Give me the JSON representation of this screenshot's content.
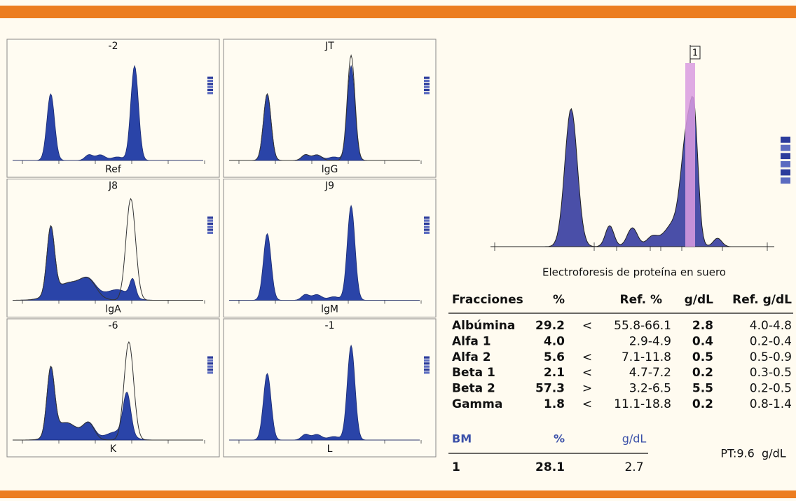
{
  "panels": [
    {
      "top": "-2",
      "bottom": "Ref"
    },
    {
      "top": "JT",
      "bottom": "lgG"
    },
    {
      "top": "J8",
      "bottom": "lgA"
    },
    {
      "top": "J9",
      "bottom": "lgM"
    },
    {
      "top": "-6",
      "bottom": "K"
    },
    {
      "top": "-1",
      "bottom": "L"
    }
  ],
  "main": {
    "marker": "1",
    "caption": "Electroforesis de proteína en suero"
  },
  "table": {
    "header": {
      "name": "Fracciones",
      "pct": "%",
      "ref_pct": "Ref. %",
      "gdl": "g/dL",
      "ref_gdl": "Ref. g/dL"
    },
    "rows": [
      {
        "name": "Albúmina",
        "pct": "29.2",
        "cmp": "<",
        "ref_pct": "55.8-66.1",
        "gdl": "2.8",
        "ref_gdl": "4.0-4.8"
      },
      {
        "name": "Alfa 1",
        "pct": "4.0",
        "ref_pct": "2.9-4.9",
        "gdl": "0.4",
        "ref_gdl": "0.2-0.4"
      },
      {
        "name": "Alfa 2",
        "pct": "5.6",
        "cmp": "<",
        "ref_pct": "7.1-11.8",
        "gdl": "0.5",
        "ref_gdl": "0.5-0.9"
      },
      {
        "name": "Beta 1",
        "pct": "2.1",
        "cmp": "<",
        "ref_pct": "4.7-7.2",
        "gdl": "0.2",
        "ref_gdl": "0.3-0.5"
      },
      {
        "name": "Beta 2",
        "pct": "57.3",
        "cmp": ">",
        "ref_pct": "3.2-6.5",
        "gdl": "5.5",
        "ref_gdl": "0.2-0.5"
      },
      {
        "name": "Gamma",
        "pct": "1.8",
        "cmp": "<",
        "ref_pct": "11.1-18.8",
        "gdl": "0.2",
        "ref_gdl": "0.8-1.4"
      }
    ],
    "bm": {
      "header": {
        "name": "BM",
        "pct": "%",
        "gdl": "g/dL"
      },
      "row": {
        "name": "1",
        "pct": "28.1",
        "gdl": "2.7"
      }
    },
    "total": "PT:9.6  g/dL"
  }
}
